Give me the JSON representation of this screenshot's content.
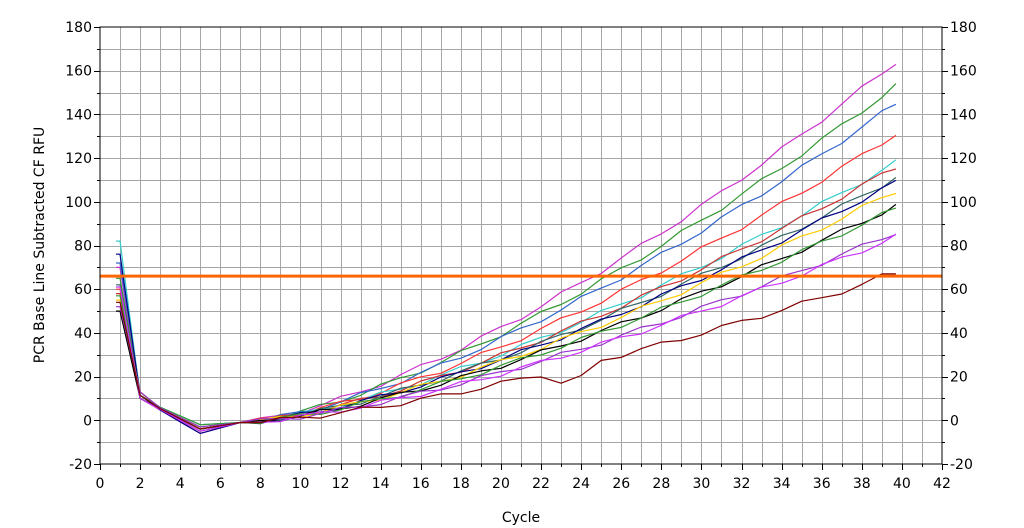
{
  "chart_data": {
    "type": "line",
    "xlabel": "Cycle",
    "ylabel": "PCR Base Line Subtracted CF RFU",
    "xlim": [
      0,
      42
    ],
    "ylim": [
      -20,
      180
    ],
    "x_ticks": [
      0,
      2,
      4,
      6,
      8,
      10,
      12,
      14,
      16,
      18,
      20,
      22,
      24,
      26,
      28,
      30,
      32,
      34,
      36,
      38,
      40,
      42
    ],
    "y_ticks": [
      -20,
      0,
      20,
      40,
      60,
      80,
      100,
      120,
      140,
      160,
      180
    ],
    "x_tick_labels": [
      "0",
      "2",
      "4",
      "6",
      "8",
      "10",
      "12",
      "14",
      "16",
      "18",
      "20",
      "22",
      "24",
      "26",
      "28",
      "30",
      "32",
      "34",
      "36",
      "38",
      "40",
      "42"
    ],
    "y_tick_labels": [
      "-20",
      "0",
      "20",
      "40",
      "60",
      "80",
      "100",
      "120",
      "140",
      "160",
      "180"
    ],
    "grid": true,
    "right_axis": true,
    "threshold": {
      "value": 66,
      "color": "#ff6600"
    },
    "x": [
      0.8,
      1,
      2,
      3,
      4,
      5,
      6,
      7,
      8,
      9,
      10,
      11,
      12,
      13,
      14,
      15,
      16,
      17,
      18,
      19,
      20,
      21,
      22,
      23,
      24,
      25,
      26,
      27,
      28,
      29,
      30,
      31,
      32,
      33,
      34,
      35,
      36,
      37,
      38,
      39,
      39.7
    ],
    "series": [
      {
        "color": "#cc33cc",
        "final": 164,
        "start": 70
      },
      {
        "color": "#339933",
        "final": 153,
        "start": 65
      },
      {
        "color": "#3366cc",
        "final": 145,
        "start": 72
      },
      {
        "color": "#ff3333",
        "final": 131,
        "start": 60
      },
      {
        "color": "#33cccc",
        "final": 118,
        "start": 82
      },
      {
        "color": "#cc3333",
        "final": 116,
        "start": 58
      },
      {
        "color": "#336666",
        "final": 111,
        "start": 62
      },
      {
        "color": "#000080",
        "final": 109,
        "start": 76
      },
      {
        "color": "#ffcc00",
        "final": 105,
        "start": 55
      },
      {
        "color": "#000000",
        "final": 98,
        "start": 50
      },
      {
        "color": "#339933",
        "final": 97,
        "start": 57
      },
      {
        "color": "#9933cc",
        "final": 86,
        "start": 52
      },
      {
        "color": "#cc33ff",
        "final": 84,
        "start": 61
      },
      {
        "color": "#800000",
        "final": 67,
        "start": 54
      }
    ]
  }
}
